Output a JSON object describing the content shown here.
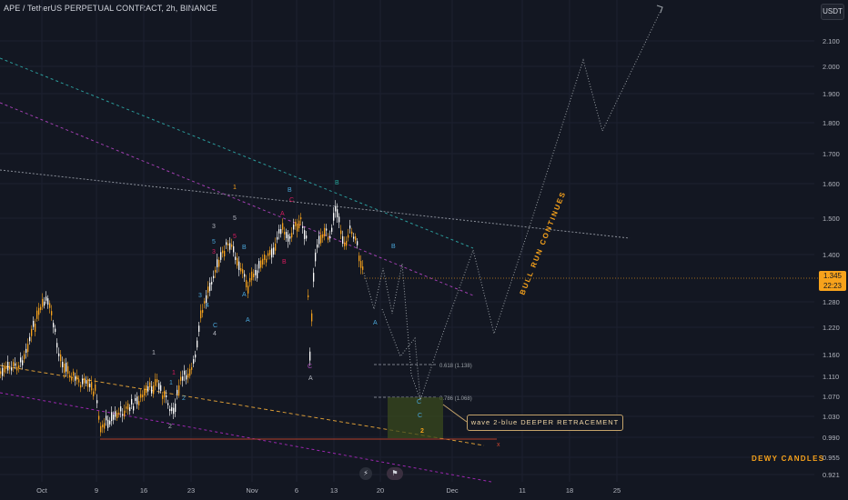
{
  "header": {
    "symbol_title": "APE / TetherUS PERPETUAL CONTRACT, 2h, BINANCE",
    "currency": "USDT"
  },
  "price_scale": {
    "labels": [
      "2.100",
      "2.000",
      "1.900",
      "1.800",
      "1.700",
      "1.600",
      "1.500",
      "1.400",
      "1.280",
      "1.220",
      "1.160",
      "1.110",
      "1.070",
      "1.030",
      "0.990",
      "0.955",
      "0.921"
    ]
  },
  "time_scale": {
    "labels": [
      "Oct",
      "9",
      "16",
      "23",
      "Nov",
      "6",
      "13",
      "20",
      "Dec",
      "11",
      "18",
      "25"
    ]
  },
  "last_price": {
    "value": "1.345",
    "countdown": "22:23"
  },
  "fib_levels": [
    {
      "label": "0.618 (1.138)"
    },
    {
      "label": "0.786 (1.068)"
    }
  ],
  "annotations": {
    "callout": "wave 2-blue DEEPER RETRACEMENT",
    "bull_run": "BULL RUN CONTINUES",
    "target_marker": "x",
    "target_wave": "2",
    "wave_c_label": "C"
  },
  "wave_labels": {
    "orange_1": "1",
    "green_b": "B",
    "blue_b_top": "B",
    "blue_b_future": "B",
    "blue_a_future": "A",
    "blue_c_future": "C",
    "blue_a_low": "A",
    "purple_c_low": "C",
    "gray_a_low": "A",
    "gray_2": "2",
    "gray_1": "1",
    "gray_3": "3",
    "gray_4": "4",
    "gray_5": "5",
    "pink_1": "1",
    "pink_3": "3",
    "pink_5": "5",
    "pink_a": "A",
    "pink_b": "B",
    "pink_c": "C",
    "blue_3": "3",
    "blue_4": "4",
    "blue_5": "5",
    "blue_1": "1",
    "blue_2": "2",
    "blue_a": "A",
    "blue_b": "B",
    "blue_c": "C"
  },
  "colors": {
    "background": "#131722",
    "candle_up": "#f7a21b",
    "candle_down": "#ffffff",
    "accent": "#f7a21b",
    "teal_line": "#2b9a9a",
    "purple_line": "#9c27b0",
    "projection": "#9aa0a6"
  },
  "watermark": "DEWY CANDLES",
  "icons": {
    "bolt": "lightning-icon",
    "flags": "flags-icon"
  }
}
